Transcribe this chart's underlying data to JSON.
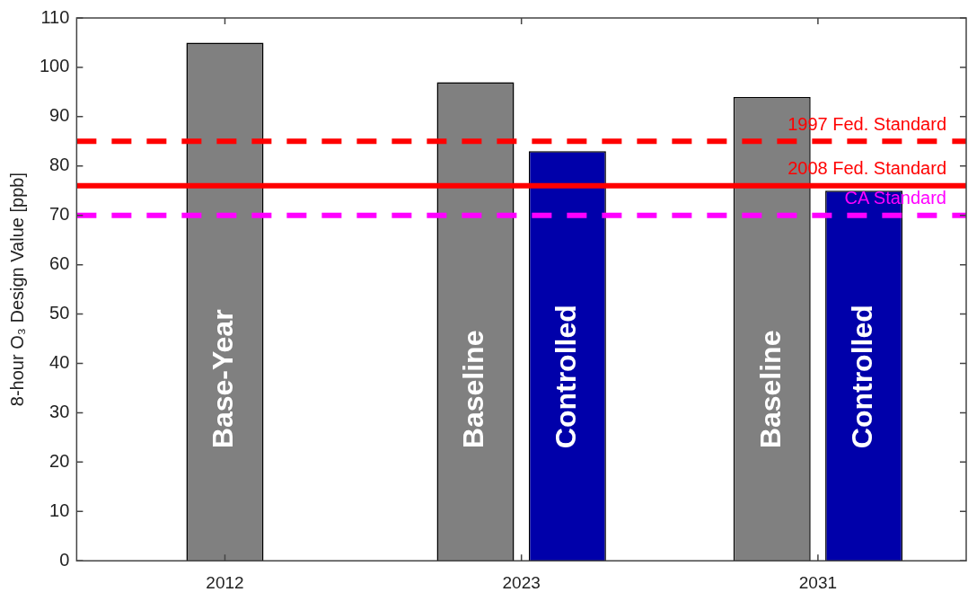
{
  "chart_data": {
    "type": "bar",
    "ylabel": "8-hour O₃ Design Value [ppb]",
    "categories": [
      "2012",
      "2023",
      "2031"
    ],
    "series": [
      {
        "name": "Base-Year",
        "color": "#808080",
        "values": [
          105,
          null,
          null
        ]
      },
      {
        "name": "Baseline",
        "color": "#808080",
        "values": [
          null,
          97,
          94
        ]
      },
      {
        "name": "Controlled",
        "color": "#0000aa",
        "values": [
          null,
          83,
          75
        ]
      }
    ],
    "ylim": [
      0,
      110
    ],
    "yticks": [
      0,
      10,
      20,
      30,
      40,
      50,
      60,
      70,
      80,
      90,
      100,
      110
    ],
    "grid": false,
    "legend": false,
    "ref_lines": [
      {
        "axis": "y",
        "value": 85,
        "label": "1997 Fed. Standard",
        "color": "#ff0000",
        "line_style": "dashed"
      },
      {
        "axis": "y",
        "value": 76,
        "label": "2008 Fed. Standard",
        "color": "#ff0000",
        "line_style": "solid"
      },
      {
        "axis": "y",
        "value": 70,
        "label": "CA Standard",
        "color": "#ff00ff",
        "line_style": "dashed"
      }
    ]
  }
}
